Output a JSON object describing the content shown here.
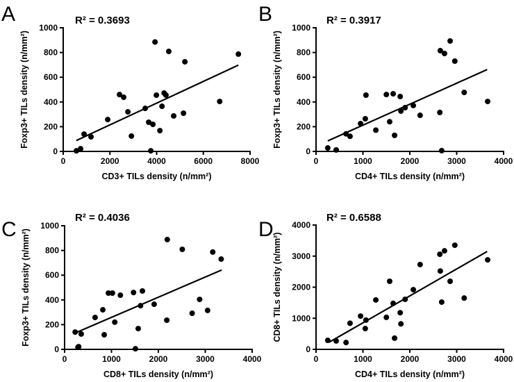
{
  "chart_data": [
    {
      "type": "scatter",
      "panel_label": "A",
      "annotation": "R² = 0.3693",
      "xlabel": "CD3+ TILs density (n/mm²)",
      "ylabel": "Foxp3+ TILs density (n/mm²)",
      "xlim": [
        0,
        8000
      ],
      "ylim": [
        0,
        1000
      ],
      "xticks": [
        0,
        2000,
        4000,
        6000,
        8000
      ],
      "yticks": [
        0,
        200,
        400,
        600,
        800,
        1000
      ],
      "grid": false,
      "points": [
        [
          565,
          5
        ],
        [
          744,
          22
        ],
        [
          893,
          140
        ],
        [
          1190,
          118
        ],
        [
          1905,
          258
        ],
        [
          2410,
          460
        ],
        [
          2590,
          438
        ],
        [
          2770,
          320
        ],
        [
          2920,
          124
        ],
        [
          3510,
          348
        ],
        [
          3660,
          236
        ],
        [
          3750,
          5
        ],
        [
          3840,
          219
        ],
        [
          3930,
          885
        ],
        [
          3990,
          455
        ],
        [
          4140,
          168
        ],
        [
          4230,
          365
        ],
        [
          4320,
          472
        ],
        [
          4400,
          455
        ],
        [
          4520,
          809
        ],
        [
          4730,
          287
        ],
        [
          5150,
          309
        ],
        [
          5210,
          725
        ],
        [
          6700,
          404
        ],
        [
          7500,
          787
        ]
      ],
      "fit_line": [
        [
          560,
          88
        ],
        [
          7500,
          698
        ]
      ]
    },
    {
      "type": "scatter",
      "panel_label": "B",
      "annotation": "R² = 0.3917",
      "xlabel": "CD4+ TILs density (n/mm²)",
      "ylabel": "Foxp3+ TILs density (n/mm²)",
      "xlim": [
        0,
        4000
      ],
      "ylim": [
        0,
        1000
      ],
      "xticks": [
        0,
        1000,
        2000,
        3000,
        4000
      ],
      "yticks": [
        0,
        200,
        400,
        600,
        800,
        1000
      ],
      "grid": false,
      "points": [
        [
          250,
          28
        ],
        [
          430,
          12
        ],
        [
          640,
          142
        ],
        [
          725,
          122
        ],
        [
          950,
          225
        ],
        [
          1050,
          264
        ],
        [
          1065,
          455
        ],
        [
          1275,
          172
        ],
        [
          1500,
          460
        ],
        [
          1570,
          240
        ],
        [
          1645,
          466
        ],
        [
          1675,
          130
        ],
        [
          1795,
          444
        ],
        [
          1810,
          326
        ],
        [
          1900,
          354
        ],
        [
          2075,
          371
        ],
        [
          2220,
          292
        ],
        [
          2640,
          315
        ],
        [
          2650,
          815
        ],
        [
          2680,
          6
        ],
        [
          2740,
          792
        ],
        [
          2860,
          893
        ],
        [
          2960,
          730
        ],
        [
          3160,
          477
        ],
        [
          3660,
          404
        ]
      ],
      "fit_line": [
        [
          250,
          85
        ],
        [
          3650,
          662
        ]
      ]
    },
    {
      "type": "scatter",
      "panel_label": "C",
      "annotation": "R² = 0.4036",
      "xlabel": "CD8+ TILs density (n/mm²)",
      "ylabel": "Foxp3+ TILs density (n/mm²)",
      "xlim": [
        0,
        4000
      ],
      "ylim": [
        0,
        1000
      ],
      "xticks": [
        0,
        1000,
        2000,
        3000,
        4000
      ],
      "yticks": [
        0,
        200,
        400,
        600,
        800,
        1000
      ],
      "grid": false,
      "points": [
        [
          225,
          140
        ],
        [
          285,
          17
        ],
        [
          300,
          22
        ],
        [
          355,
          124
        ],
        [
          650,
          258
        ],
        [
          815,
          320
        ],
        [
          845,
          118
        ],
        [
          935,
          455
        ],
        [
          1020,
          455
        ],
        [
          1070,
          220
        ],
        [
          1190,
          438
        ],
        [
          1470,
          460
        ],
        [
          1510,
          5
        ],
        [
          1570,
          168
        ],
        [
          1620,
          353
        ],
        [
          1660,
          472
        ],
        [
          1910,
          365
        ],
        [
          2180,
          236
        ],
        [
          2190,
          888
        ],
        [
          2510,
          809
        ],
        [
          2720,
          292
        ],
        [
          2880,
          404
        ],
        [
          3050,
          315
        ],
        [
          3160,
          787
        ],
        [
          3340,
          730
        ]
      ],
      "fit_line": [
        [
          240,
          135
        ],
        [
          3350,
          642
        ]
      ]
    },
    {
      "type": "scatter",
      "panel_label": "D",
      "annotation": "R² = 0.6588",
      "xlabel": "CD4+ TILs density (n/mm²)",
      "ylabel": "CD8+ TILs density (n/mm²)",
      "xlim": [
        0,
        4000
      ],
      "ylim": [
        0,
        4000
      ],
      "xticks": [
        0,
        1000,
        2000,
        3000,
        4000
      ],
      "yticks": [
        0,
        1000,
        2000,
        3000,
        4000
      ],
      "grid": false,
      "points": [
        [
          250,
          290
        ],
        [
          430,
          270
        ],
        [
          640,
          220
        ],
        [
          725,
          840
        ],
        [
          950,
          1070
        ],
        [
          1050,
          670
        ],
        [
          1065,
          940
        ],
        [
          1275,
          1590
        ],
        [
          1500,
          1030
        ],
        [
          1570,
          2190
        ],
        [
          1645,
          1480
        ],
        [
          1675,
          360
        ],
        [
          1795,
          1180
        ],
        [
          1810,
          820
        ],
        [
          1900,
          1610
        ],
        [
          2075,
          1920
        ],
        [
          2220,
          2730
        ],
        [
          2640,
          3060
        ],
        [
          2650,
          2520
        ],
        [
          2680,
          1520
        ],
        [
          2740,
          3170
        ],
        [
          2860,
          2190
        ],
        [
          2960,
          3350
        ],
        [
          3160,
          1650
        ],
        [
          3660,
          2880
        ]
      ],
      "fit_line": [
        [
          280,
          230
        ],
        [
          3650,
          3150
        ]
      ]
    }
  ]
}
